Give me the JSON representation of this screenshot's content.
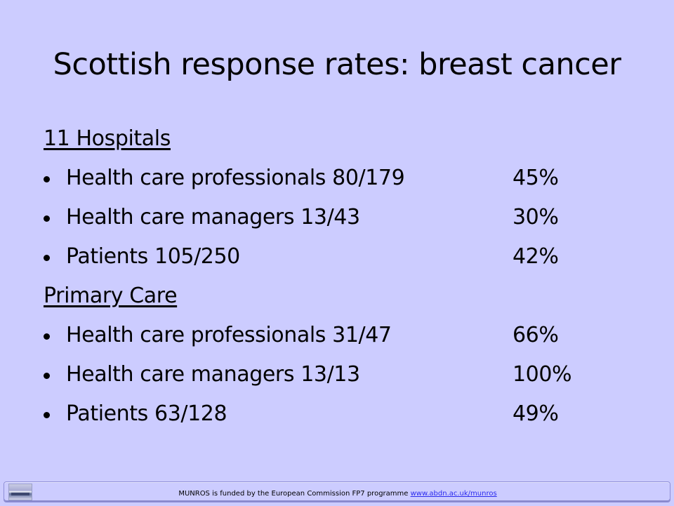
{
  "slide": {
    "title": "Scottish response rates: breast cancer"
  },
  "sections": [
    {
      "heading": "11 Hospitals",
      "items": [
        {
          "label": "Health care professionals 80/179",
          "rate": "45%"
        },
        {
          "label": "Health care managers  13/43",
          "rate": "30%"
        },
        {
          "label": "Patients 105/250",
          "rate": "42%"
        }
      ]
    },
    {
      "heading": "Primary Care",
      "items": [
        {
          "label": "Health care professionals 31/47",
          "rate": "66%"
        },
        {
          "label": "Health care managers  13/13",
          "rate": "100%"
        },
        {
          "label": "Patients 63/128",
          "rate": "49%"
        }
      ]
    }
  ],
  "footer": {
    "text": "MUNROS  is funded by the  European Commission  FP7 programme ",
    "link_text": "www.abdn.ac.uk/munros"
  }
}
